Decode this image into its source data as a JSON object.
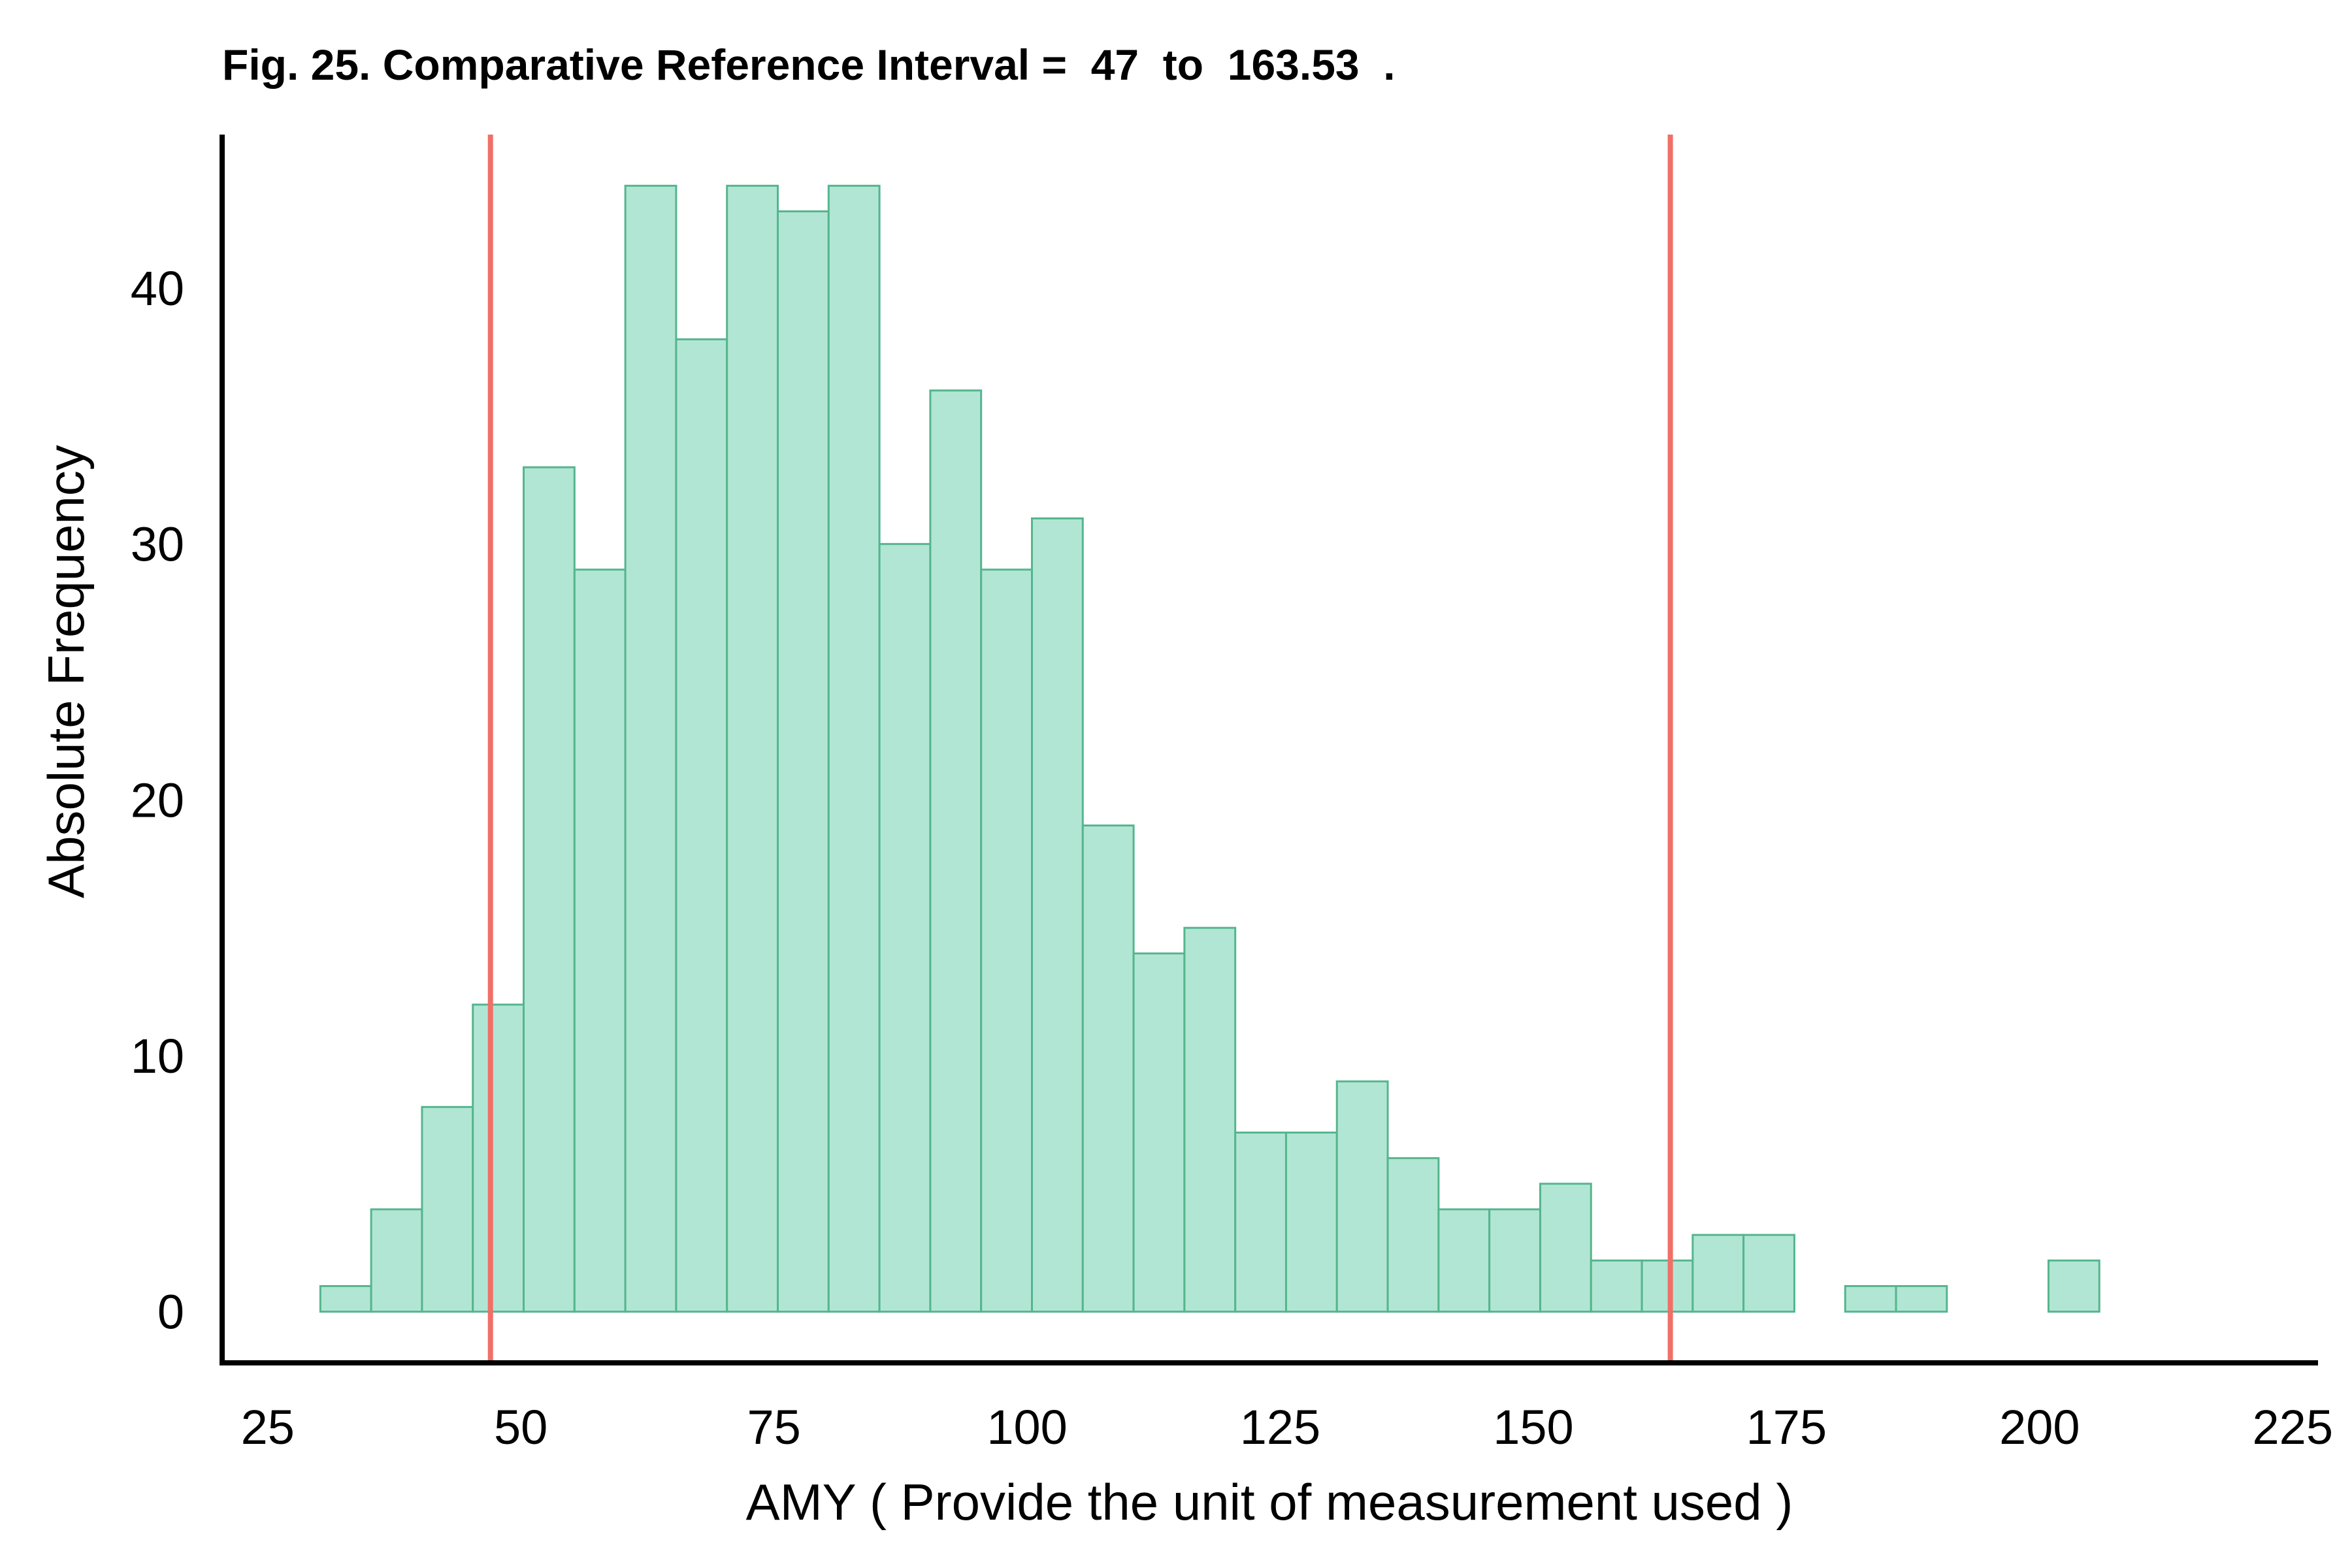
{
  "chart_data": {
    "type": "bar",
    "title": "Fig. 25. Comparative Reference Interval =  47  to  163.53  .",
    "xlabel": "AMY ( Provide the unit of measurement used )",
    "ylabel": "Absolute Frequency",
    "xlim": [
      20.5,
      227.5
    ],
    "ylim": [
      -2,
      46
    ],
    "x_ticks": [
      25,
      50,
      75,
      100,
      125,
      150,
      175,
      200,
      225
    ],
    "y_ticks": [
      0,
      10,
      20,
      30,
      40
    ],
    "grid": false,
    "bin_start": 30.2,
    "bin_width": 5.02,
    "counts": [
      1,
      4,
      8,
      12,
      33,
      29,
      44,
      38,
      44,
      43,
      44,
      30,
      36,
      29,
      31,
      19,
      14,
      15,
      7,
      7,
      9,
      6,
      4,
      4,
      5,
      2,
      2,
      3,
      3,
      0,
      1,
      1,
      0,
      0,
      2
    ],
    "reference_lines": [
      47,
      163.53
    ],
    "colors": {
      "bar_fill": "#b2e6d4",
      "bar_stroke": "#55b58f",
      "reference_line": "#f07067",
      "axis": "#000000"
    }
  }
}
